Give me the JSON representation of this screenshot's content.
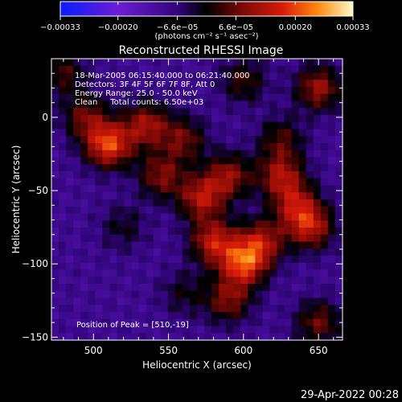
{
  "chart_data": {
    "type": "heatmap",
    "title": "Reconstructed RHESSI Image",
    "xlabel": "Heliocentric X (arcsec)",
    "ylabel": "Heliocentric Y (arcsec)",
    "xlim": [
      472,
      666
    ],
    "ylim": [
      -152,
      40
    ],
    "x_ticks": [
      "500",
      "550",
      "600",
      "650"
    ],
    "x_tick_values": [
      500,
      550,
      600,
      650
    ],
    "y_ticks": [
      "0",
      "−50",
      "−100",
      "−150"
    ],
    "y_tick_values": [
      0,
      -50,
      -100,
      -150
    ],
    "colorbar": {
      "min": -0.00033,
      "max": 0.00033,
      "tick_labels": [
        "−0.00033",
        "−0.00020",
        "−6.6e−05",
        "6.6e−05",
        "0.00020",
        "0.00033"
      ],
      "tick_values": [
        -0.00033,
        -0.0002,
        -6.6e-05,
        6.6e-05,
        0.0002,
        0.00033
      ],
      "units_label": "(photons cm⁻² s⁻¹ asec⁻²)",
      "colors": [
        "#0a1cff",
        "#6d1cd6",
        "#31057a",
        "#000000",
        "#7a0806",
        "#d81a08",
        "#ff8a0c",
        "#fff8c8"
      ]
    },
    "annotations": [
      "18-Mar-2005 06:15:40.000 to 06:21:40.000",
      "Detectors: 3F 4F 5F 6F 7F 8F, Att 0",
      "Energy Range: 25.0 - 50.0 keV",
      "Clean     Total counts: 6.50e+03"
    ],
    "peak_label": "Position of Peak = [510,-19]",
    "sources": [
      {
        "x": 510,
        "y": -19,
        "amp": 1.0
      },
      {
        "x": 495,
        "y": 0,
        "amp": 0.55
      },
      {
        "x": 535,
        "y": -5,
        "amp": 0.7
      },
      {
        "x": 545,
        "y": -40,
        "amp": 0.6
      },
      {
        "x": 560,
        "y": -15,
        "amp": 0.55
      },
      {
        "x": 572,
        "y": -55,
        "amp": 0.75
      },
      {
        "x": 590,
        "y": -40,
        "amp": 0.65
      },
      {
        "x": 580,
        "y": -85,
        "amp": 0.8
      },
      {
        "x": 600,
        "y": -100,
        "amp": 0.95
      },
      {
        "x": 612,
        "y": -85,
        "amp": 0.7
      },
      {
        "x": 590,
        "y": -125,
        "amp": 0.6
      },
      {
        "x": 625,
        "y": -40,
        "amp": 0.7
      },
      {
        "x": 635,
        "y": -60,
        "amp": 0.65
      },
      {
        "x": 645,
        "y": -75,
        "amp": 0.75
      },
      {
        "x": 650,
        "y": 20,
        "amp": 0.7
      },
      {
        "x": 600,
        "y": 25,
        "amp": 0.45
      },
      {
        "x": 625,
        "y": -15,
        "amp": 0.45
      },
      {
        "x": 650,
        "y": -140,
        "amp": 0.55
      },
      {
        "x": 520,
        "y": -75,
        "amp": 0.3
      },
      {
        "x": 560,
        "y": -120,
        "amp": 0.3
      },
      {
        "x": 480,
        "y": 30,
        "amp": 0.45
      }
    ]
  },
  "footer": {
    "timestamp": "29-Apr-2022 00:28"
  }
}
